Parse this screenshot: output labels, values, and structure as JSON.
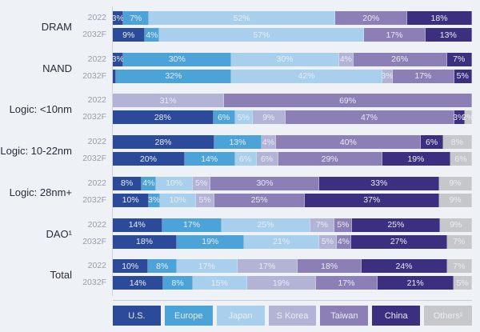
{
  "chart_data": {
    "type": "bar",
    "orientation": "horizontal",
    "stacked": true,
    "normalized_percent": true,
    "title": "",
    "xlabel": "",
    "ylabel": "",
    "xlim": [
      0,
      100
    ],
    "grid": false,
    "legend_position": "bottom",
    "series_names": [
      "U.S.",
      "Europe",
      "Japan",
      "S Korea",
      "Taiwan",
      "China",
      "Others²"
    ],
    "series_colors": [
      "#2b4a9a",
      "#4ba3d8",
      "#a8d0ec",
      "#b3b3d6",
      "#8b7fb6",
      "#3c2f80",
      "#c6c7cb"
    ],
    "groups": [
      {
        "category": "DRAM",
        "rows": [
          {
            "year": "2022",
            "values": [
              3,
              7,
              52,
              0,
              20,
              18,
              0
            ],
            "labels": [
              "3%",
              "7%",
              "52%",
              "",
              "20%",
              "18%",
              ""
            ]
          },
          {
            "year": "2032F",
            "values": [
              9,
              4,
              57,
              0,
              17,
              13,
              0
            ],
            "labels": [
              "9%",
              "4%",
              "57%",
              "",
              "17%",
              "13%",
              ""
            ]
          }
        ]
      },
      {
        "category": "NAND",
        "rows": [
          {
            "year": "2022",
            "values": [
              3,
              30,
              30,
              4,
              26,
              7,
              0
            ],
            "labels": [
              "3%",
              "30%",
              "30%",
              "4%",
              "26%",
              "7%",
              ""
            ]
          },
          {
            "year": "2032F",
            "values": [
              1,
              32,
              42,
              3,
              17,
              5,
              0
            ],
            "labels": [
              "",
              "32%",
              "42%",
              "3%",
              "17%",
              "5%",
              ""
            ]
          }
        ]
      },
      {
        "category": "Logic: <10nm",
        "rows": [
          {
            "year": "2022",
            "values": [
              0,
              0,
              0,
              31,
              69,
              0,
              0
            ],
            "labels": [
              "",
              "",
              "",
              "31%",
              "69%",
              "",
              ""
            ]
          },
          {
            "year": "2032F",
            "values": [
              28,
              6,
              5,
              9,
              47,
              3,
              2
            ],
            "labels": [
              "28%",
              "6%",
              "5%",
              "9%",
              "47%",
              "3%",
              "2%"
            ]
          }
        ]
      },
      {
        "category": "Logic: 10-22nm",
        "rows": [
          {
            "year": "2022",
            "values": [
              28,
              13,
              0,
              4,
              40,
              6,
              8
            ],
            "labels": [
              "28%",
              "13%",
              "",
              "4%",
              "40%",
              "6%",
              "8%"
            ]
          },
          {
            "year": "2032F",
            "values": [
              20,
              14,
              6,
              6,
              29,
              19,
              6
            ],
            "labels": [
              "20%",
              "14%",
              "6%",
              "6%",
              "29%",
              "19%",
              "6%"
            ]
          }
        ]
      },
      {
        "category": "Logic: 28nm+",
        "rows": [
          {
            "year": "2022",
            "values": [
              8,
              4,
              10,
              5,
              30,
              33,
              9
            ],
            "labels": [
              "8%",
              "4%",
              "10%",
              "5%",
              "30%",
              "33%",
              "9%"
            ]
          },
          {
            "year": "2032F",
            "values": [
              10,
              3,
              10,
              5,
              25,
              37,
              9
            ],
            "labels": [
              "10%",
              "3%",
              "10%",
              "5%",
              "25%",
              "37%",
              "9%"
            ]
          }
        ]
      },
      {
        "category": "DAO¹",
        "rows": [
          {
            "year": "2022",
            "values": [
              14,
              17,
              25,
              7,
              5,
              25,
              9
            ],
            "labels": [
              "14%",
              "17%",
              "25%",
              "7%",
              "5%",
              "25%",
              "9%"
            ]
          },
          {
            "year": "2032F",
            "values": [
              18,
              19,
              21,
              5,
              4,
              27,
              7
            ],
            "labels": [
              "18%",
              "19%",
              "21%",
              "5%",
              "4%",
              "27%",
              "7%"
            ]
          }
        ]
      },
      {
        "category": "Total",
        "rows": [
          {
            "year": "2022",
            "values": [
              10,
              8,
              17,
              17,
              18,
              24,
              7
            ],
            "labels": [
              "10%",
              "8%",
              "17%",
              "17%",
              "18%",
              "24%",
              "7%"
            ]
          },
          {
            "year": "2032F",
            "values": [
              14,
              8,
              15,
              19,
              17,
              21,
              5
            ],
            "labels": [
              "14%",
              "8%",
              "15%",
              "19%",
              "17%",
              "21%",
              "5%"
            ]
          }
        ]
      }
    ]
  }
}
